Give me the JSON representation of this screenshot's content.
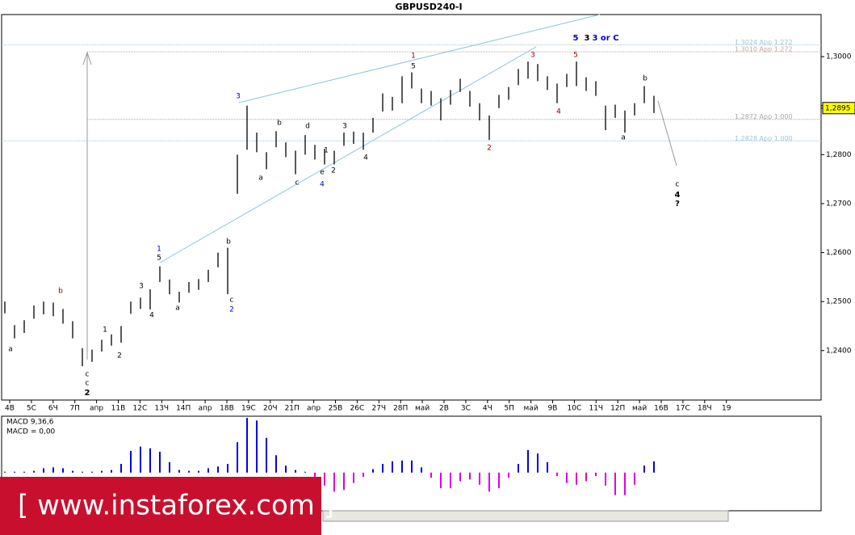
{
  "chart_data": {
    "type": "ohlc",
    "title": "GBPUSD240-I",
    "high": [
      1.25,
      1.2452,
      1.2462,
      1.2492,
      1.25,
      1.2498,
      1.2485,
      1.246,
      1.2405,
      1.2402,
      1.2422,
      1.2433,
      1.245,
      1.25,
      1.2508,
      1.2525,
      1.2572,
      1.2545,
      1.252,
      1.254,
      1.2546,
      1.2565,
      1.26,
      1.261,
      1.28,
      1.29,
      1.2845,
      1.2805,
      1.2848,
      1.2825,
      1.2808,
      1.284,
      1.282,
      1.2812,
      1.2808,
      1.2845,
      1.2847,
      1.2845,
      1.2875,
      1.2925,
      1.2918,
      1.296,
      1.2968,
      1.2935,
      1.293,
      1.2915,
      1.2932,
      1.2955,
      1.293,
      1.2905,
      1.288,
      1.2922,
      1.2938,
      1.2975,
      1.299,
      1.2985,
      1.296,
      1.2945,
      1.2965,
      1.299,
      1.2958,
      1.295,
      1.29,
      1.2902,
      1.289,
      1.2905,
      1.294,
      1.292
    ],
    "low": [
      1.2476,
      1.2425,
      1.2436,
      1.2465,
      1.2474,
      1.247,
      1.2455,
      1.2425,
      1.2368,
      1.2377,
      1.2398,
      1.241,
      1.2416,
      1.2475,
      1.2485,
      1.2484,
      1.254,
      1.2515,
      1.2498,
      1.2518,
      1.2524,
      1.254,
      1.257,
      1.2515,
      1.272,
      1.281,
      1.2805,
      1.277,
      1.2815,
      1.2795,
      1.276,
      1.28,
      1.279,
      1.278,
      1.278,
      1.2818,
      1.2822,
      1.281,
      1.2845,
      1.2888,
      1.289,
      1.2905,
      1.2935,
      1.2905,
      1.29,
      1.287,
      1.2902,
      1.2928,
      1.2898,
      1.287,
      1.283,
      1.2895,
      1.2912,
      1.2942,
      1.2955,
      1.295,
      1.2932,
      1.2905,
      1.2938,
      1.294,
      1.293,
      1.292,
      1.285,
      1.2875,
      1.2845,
      1.288,
      1.2905,
      1.2885
    ],
    "ylim": [
      1.2299,
      1.3086
    ],
    "yticks": [
      {
        "value": 1.24,
        "label": "1,2400"
      },
      {
        "value": 1.25,
        "label": "1,2500"
      },
      {
        "value": 1.26,
        "label": "1,2600"
      },
      {
        "value": 1.27,
        "label": "1,2700"
      },
      {
        "value": 1.28,
        "label": "1,2800"
      },
      {
        "value": 1.29,
        "label": "1,2900"
      },
      {
        "value": 1.3,
        "label": "1,3000"
      }
    ],
    "current_price": {
      "value": 1.2895,
      "label": "1,2895"
    },
    "levels": [
      {
        "value": 1.3024,
        "label": "1,3024 App 1,272",
        "color": "#9cc6d8"
      },
      {
        "value": 1.301,
        "label": "1,3010 App 1,272",
        "color": "#c8a8a8"
      },
      {
        "value": 1.2872,
        "label": "1,2872 App 1,000",
        "color": "#a8a8a8"
      },
      {
        "value": 1.2828,
        "label": "1,2828 App 1,000",
        "color": "#9cc6d8"
      }
    ],
    "x_labels": [
      "4В",
      "5С",
      "6Ч",
      "7П",
      "апр",
      "11В",
      "12С",
      "13Ч",
      "14П",
      "апр",
      "18В",
      "19С",
      "20Ч",
      "21П",
      "апр",
      "25В",
      "26С",
      "27Ч",
      "28П",
      "май",
      "2В",
      "3С",
      "4Ч",
      "5П",
      "май",
      "9В",
      "10С",
      "11Ч",
      "12П",
      "май",
      "16В",
      "17С",
      "18Ч",
      "19"
    ],
    "annotations": [
      {
        "text": "a",
        "color": "#000"
      },
      {
        "text": "b",
        "color": "#8b0000"
      },
      {
        "text": "c",
        "color": "#000"
      },
      {
        "text": "c",
        "color": "#000"
      },
      {
        "text": "2",
        "color": "#000"
      },
      {
        "text": "1",
        "color": "#000"
      },
      {
        "text": "2",
        "color": "#000"
      },
      {
        "text": "3",
        "color": "#000"
      },
      {
        "text": "4",
        "color": "#000"
      },
      {
        "text": "1",
        "color": "#0000cc"
      },
      {
        "text": "5",
        "color": "#000"
      },
      {
        "text": "a",
        "color": "#000"
      },
      {
        "text": "b",
        "color": "#000"
      },
      {
        "text": "c",
        "color": "#000"
      },
      {
        "text": "2",
        "color": "#0000cc"
      },
      {
        "text": "3",
        "color": "#0000cc"
      },
      {
        "text": "a",
        "color": "#000"
      },
      {
        "text": "b",
        "color": "#000"
      },
      {
        "text": "c",
        "color": "#000"
      },
      {
        "text": "d",
        "color": "#000"
      },
      {
        "text": "e",
        "color": "#000"
      },
      {
        "text": "4",
        "color": "#0000cc"
      },
      {
        "text": "1",
        "color": "#000"
      },
      {
        "text": "2",
        "color": "#000"
      },
      {
        "text": "3",
        "color": "#000"
      },
      {
        "text": "4",
        "color": "#000"
      },
      {
        "text": "1",
        "color": "#8b0000"
      },
      {
        "text": "5",
        "color": "#000"
      },
      {
        "text": "2",
        "color": "#8b0000"
      },
      {
        "text": "3",
        "color": "#8b0000"
      },
      {
        "text": "4",
        "color": "#8b0000"
      },
      {
        "text": "5",
        "color": "#8b0000"
      },
      {
        "text": "5",
        "color": "#0000cc"
      },
      {
        "text": "3",
        "color": "#000"
      },
      {
        "text": "3 or C",
        "color": "#0000cc"
      },
      {
        "text": "a",
        "color": "#000"
      },
      {
        "text": "b",
        "color": "#000"
      },
      {
        "text": "c",
        "color": "#000"
      },
      {
        "text": "4",
        "color": "#000"
      },
      {
        "text": "?",
        "color": "#000"
      }
    ],
    "macd": {
      "label": "MACD 9,36,6",
      "value_text": "MACD = 0,00",
      "ylim": [
        -0.0044,
        0.0065
      ],
      "values": [
        0.0001,
        0.0001,
        0.0001,
        0.0002,
        0.0005,
        0.0006,
        0.0005,
        0.0002,
        0.0001,
        0.0001,
        0.0002,
        0.0003,
        0.001,
        0.0025,
        0.003,
        0.0028,
        0.0024,
        0.0012,
        0.0003,
        0.0002,
        0.0002,
        0.0005,
        0.0007,
        0.001,
        0.0035,
        0.0063,
        0.006,
        0.004,
        0.002,
        0.0008,
        0.0003,
        0.0001,
        -0.0005,
        -0.0015,
        -0.0022,
        -0.002,
        -0.0012,
        -0.0005,
        0.0004,
        0.001,
        0.0013,
        0.0014,
        0.0014,
        0.0006,
        -0.0006,
        -0.0018,
        -0.0018,
        -0.001,
        -0.0008,
        -0.0014,
        -0.0022,
        -0.0018,
        -0.0006,
        0.001,
        0.0026,
        0.0022,
        0.0012,
        -0.0004,
        -0.0012,
        -0.0014,
        -0.001,
        -0.0004,
        -0.0015,
        -0.0026,
        -0.0026,
        -0.0014,
        0.0008,
        0.0013
      ],
      "positive_color": "#0000ee",
      "negative_color": "#dd00dd"
    },
    "watermark": "[  www.instaforex.com ]"
  }
}
